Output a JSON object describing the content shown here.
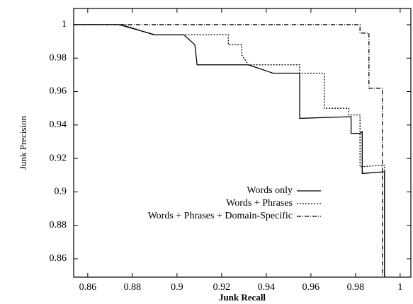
{
  "chart_data": {
    "type": "line",
    "xlabel": "Junk Recall",
    "ylabel": "Junk Precision",
    "xlim": [
      0.8537,
      1.0048
    ],
    "ylim": [
      0.849,
      1.0097
    ],
    "xticks": [
      0.86,
      0.88,
      0.9,
      0.92,
      0.94,
      0.96,
      0.98,
      1
    ],
    "yticks": [
      0.86,
      0.88,
      0.9,
      0.92,
      0.94,
      0.96,
      0.98,
      1
    ],
    "legend": "lower-center",
    "series": [
      {
        "name": "Words only",
        "color": "#000000",
        "dash": "none",
        "x": [
          0.8537,
          0.874,
          0.89,
          0.903,
          0.908,
          0.909,
          0.932,
          0.943,
          0.955,
          0.955,
          0.978,
          0.978,
          0.982,
          0.983,
          0.983,
          0.993,
          0.993
        ],
        "values": [
          1,
          1,
          0.994,
          0.994,
          0.988,
          0.976,
          0.976,
          0.971,
          0.971,
          0.944,
          0.945,
          0.935,
          0.935,
          0.936,
          0.911,
          0.912,
          0.849
        ]
      },
      {
        "name": "Words + Phrases",
        "color": "#000000",
        "dash": "2,2",
        "x": [
          0.8537,
          0.876,
          0.889,
          0.923,
          0.923,
          0.929,
          0.929,
          0.932,
          0.955,
          0.955,
          0.966,
          0.966,
          0.977,
          0.977,
          0.982,
          0.982,
          0.993,
          0.993
        ],
        "values": [
          1,
          1,
          0.994,
          0.994,
          0.988,
          0.988,
          0.982,
          0.976,
          0.976,
          0.971,
          0.971,
          0.95,
          0.95,
          0.946,
          0.946,
          0.915,
          0.916,
          0.849
        ]
      },
      {
        "name": "Words + Phrases + Domain-Specific",
        "color": "#000000",
        "dash": "6,2,1,2",
        "x": [
          0.8537,
          0.982,
          0.982,
          0.986,
          0.986,
          0.992,
          0.992
        ],
        "values": [
          1,
          1,
          0.995,
          0.995,
          0.962,
          0.962,
          0.849
        ]
      }
    ]
  }
}
